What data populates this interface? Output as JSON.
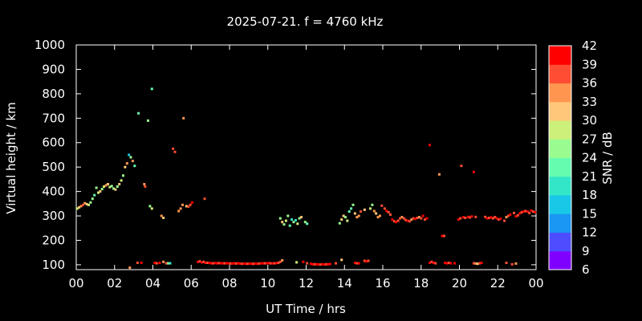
{
  "chart_data": {
    "type": "scatter",
    "title": "2025-07-21. f = 4760 kHz",
    "xlabel": "UT Time / hrs",
    "ylabel": "Virtual height / km",
    "xlim": [
      0,
      24
    ],
    "ylim": [
      80,
      1000
    ],
    "x_ticks": [
      "00",
      "02",
      "04",
      "06",
      "08",
      "10",
      "12",
      "14",
      "16",
      "18",
      "20",
      "22",
      "00"
    ],
    "y_ticks": [
      100,
      200,
      300,
      400,
      500,
      600,
      700,
      800,
      900,
      1000
    ],
    "grid": false,
    "background": "#000000",
    "colorbar": {
      "label": "SNR / dB",
      "min": 6,
      "max": 42,
      "ticks": [
        6,
        9,
        12,
        15,
        18,
        21,
        24,
        27,
        30,
        33,
        36,
        39,
        42
      ],
      "colors": [
        "#8000ff",
        "#4d4dff",
        "#1a96f3",
        "#19c7e6",
        "#33e6c7",
        "#66fcb0",
        "#99fc90",
        "#ccf07a",
        "#ffc77a",
        "#ff9650",
        "#ff4d33",
        "#ff0000"
      ]
    },
    "points": [
      [
        0.05,
        330,
        27
      ],
      [
        0.15,
        335,
        30
      ],
      [
        0.25,
        340,
        33
      ],
      [
        0.35,
        345,
        36
      ],
      [
        0.45,
        352,
        33
      ],
      [
        0.55,
        348,
        30
      ],
      [
        0.65,
        345,
        27
      ],
      [
        0.75,
        355,
        24
      ],
      [
        0.85,
        370,
        24
      ],
      [
        0.95,
        385,
        21
      ],
      [
        1.05,
        415,
        24
      ],
      [
        1.15,
        395,
        27
      ],
      [
        1.25,
        400,
        30
      ],
      [
        1.35,
        410,
        24
      ],
      [
        1.45,
        420,
        27
      ],
      [
        1.55,
        425,
        33
      ],
      [
        1.65,
        430,
        30
      ],
      [
        1.75,
        418,
        27
      ],
      [
        1.85,
        422,
        24
      ],
      [
        1.95,
        412,
        24
      ],
      [
        2.05,
        408,
        30
      ],
      [
        2.15,
        420,
        24
      ],
      [
        2.25,
        430,
        30
      ],
      [
        2.35,
        445,
        27
      ],
      [
        2.45,
        465,
        24
      ],
      [
        2.55,
        500,
        30
      ],
      [
        2.65,
        515,
        33
      ],
      [
        2.75,
        550,
        15
      ],
      [
        2.85,
        540,
        24
      ],
      [
        2.95,
        525,
        33
      ],
      [
        3.05,
        505,
        21
      ],
      [
        3.25,
        720,
        21
      ],
      [
        3.55,
        430,
        33
      ],
      [
        3.6,
        420,
        36
      ],
      [
        3.75,
        690,
        24
      ],
      [
        3.85,
        340,
        24
      ],
      [
        3.95,
        330,
        27
      ],
      [
        3.95,
        820,
        21
      ],
      [
        4.45,
        300,
        33
      ],
      [
        4.55,
        292,
        30
      ],
      [
        5.05,
        575,
        36
      ],
      [
        5.15,
        562,
        36
      ],
      [
        5.35,
        320,
        33
      ],
      [
        5.45,
        330,
        33
      ],
      [
        5.55,
        345,
        33
      ],
      [
        5.6,
        700,
        33
      ],
      [
        5.75,
        340,
        30
      ],
      [
        5.85,
        338,
        36
      ],
      [
        5.95,
        345,
        36
      ],
      [
        6.05,
        355,
        39
      ],
      [
        6.7,
        370,
        36
      ],
      [
        10.65,
        290,
        24
      ],
      [
        10.75,
        275,
        30
      ],
      [
        10.85,
        265,
        24
      ],
      [
        10.95,
        280,
        27
      ],
      [
        11.05,
        300,
        24
      ],
      [
        11.15,
        260,
        21
      ],
      [
        11.25,
        285,
        18
      ],
      [
        11.35,
        275,
        24
      ],
      [
        11.45,
        282,
        18
      ],
      [
        11.55,
        268,
        27
      ],
      [
        11.65,
        290,
        24
      ],
      [
        11.75,
        295,
        30
      ],
      [
        11.95,
        275,
        24
      ],
      [
        12.05,
        268,
        21
      ],
      [
        13.75,
        270,
        24
      ],
      [
        13.85,
        285,
        30
      ],
      [
        13.95,
        300,
        30
      ],
      [
        14.05,
        295,
        24
      ],
      [
        14.15,
        280,
        27
      ],
      [
        14.25,
        318,
        21
      ],
      [
        14.35,
        330,
        21
      ],
      [
        14.45,
        345,
        24
      ],
      [
        14.55,
        310,
        30
      ],
      [
        14.65,
        295,
        33
      ],
      [
        14.75,
        300,
        33
      ],
      [
        14.85,
        318,
        36
      ],
      [
        15.05,
        325,
        30
      ],
      [
        15.35,
        330,
        27
      ],
      [
        15.45,
        345,
        24
      ],
      [
        15.55,
        320,
        33
      ],
      [
        15.65,
        310,
        30
      ],
      [
        15.75,
        295,
        33
      ],
      [
        15.85,
        300,
        33
      ],
      [
        15.95,
        342,
        36
      ],
      [
        16.1,
        330,
        36
      ],
      [
        16.2,
        320,
        39
      ],
      [
        16.3,
        315,
        36
      ],
      [
        16.4,
        305,
        36
      ],
      [
        16.5,
        285,
        39
      ],
      [
        16.6,
        278,
        36
      ],
      [
        16.7,
        275,
        39
      ],
      [
        16.8,
        280,
        36
      ],
      [
        16.9,
        290,
        36
      ],
      [
        17.0,
        295,
        33
      ],
      [
        17.1,
        290,
        36
      ],
      [
        17.2,
        283,
        36
      ],
      [
        17.3,
        280,
        39
      ],
      [
        17.4,
        278,
        36
      ],
      [
        17.5,
        285,
        33
      ],
      [
        17.6,
        290,
        36
      ],
      [
        17.7,
        288,
        39
      ],
      [
        17.8,
        292,
        36
      ],
      [
        17.9,
        295,
        33
      ],
      [
        18.0,
        290,
        36
      ],
      [
        18.1,
        300,
        39
      ],
      [
        18.2,
        285,
        36
      ],
      [
        18.3,
        290,
        39
      ],
      [
        18.45,
        590,
        39
      ],
      [
        18.95,
        470,
        33
      ],
      [
        19.1,
        218,
        39
      ],
      [
        19.2,
        218,
        36
      ],
      [
        19.95,
        285,
        39
      ],
      [
        20.1,
        505,
        36
      ],
      [
        20.05,
        290,
        36
      ],
      [
        20.2,
        295,
        39
      ],
      [
        20.3,
        292,
        36
      ],
      [
        20.45,
        296,
        39
      ],
      [
        20.55,
        294,
        36
      ],
      [
        20.65,
        298,
        39
      ],
      [
        20.75,
        480,
        39
      ],
      [
        20.85,
        296,
        36
      ],
      [
        21.35,
        296,
        36
      ],
      [
        21.45,
        290,
        39
      ],
      [
        21.55,
        292,
        36
      ],
      [
        21.65,
        294,
        39
      ],
      [
        21.75,
        290,
        36
      ],
      [
        21.85,
        295,
        36
      ],
      [
        21.95,
        290,
        39
      ],
      [
        22.05,
        285,
        36
      ],
      [
        22.15,
        288,
        39
      ],
      [
        22.35,
        280,
        36
      ],
      [
        22.45,
        295,
        33
      ],
      [
        22.55,
        300,
        36
      ],
      [
        22.65,
        305,
        39
      ],
      [
        22.85,
        312,
        36
      ],
      [
        22.95,
        298,
        39
      ],
      [
        23.05,
        302,
        36
      ],
      [
        23.15,
        310,
        39
      ],
      [
        23.25,
        315,
        36
      ],
      [
        23.35,
        318,
        39
      ],
      [
        23.45,
        320,
        36
      ],
      [
        23.55,
        318,
        39
      ],
      [
        23.65,
        312,
        36
      ],
      [
        23.75,
        322,
        39
      ],
      [
        23.85,
        318,
        36
      ],
      [
        23.95,
        315,
        39
      ],
      [
        2.8,
        88,
        33
      ],
      [
        3.2,
        108,
        36
      ],
      [
        3.4,
        108,
        39
      ],
      [
        4.1,
        108,
        39
      ],
      [
        4.2,
        106,
        36
      ],
      [
        4.35,
        108,
        39
      ],
      [
        4.55,
        112,
        33
      ],
      [
        4.7,
        106,
        36
      ],
      [
        4.8,
        106,
        24
      ],
      [
        4.9,
        106,
        18
      ],
      [
        6.35,
        112,
        39
      ],
      [
        6.45,
        114,
        36
      ],
      [
        6.55,
        110,
        39
      ],
      [
        6.65,
        112,
        36
      ],
      [
        6.75,
        108,
        39
      ],
      [
        6.85,
        108,
        36
      ],
      [
        6.95,
        108,
        39
      ],
      [
        7.05,
        106,
        39
      ],
      [
        7.15,
        106,
        36
      ],
      [
        7.25,
        107,
        39
      ],
      [
        7.35,
        106,
        39
      ],
      [
        7.45,
        107,
        36
      ],
      [
        7.55,
        106,
        39
      ],
      [
        7.65,
        106,
        39
      ],
      [
        7.75,
        106,
        36
      ],
      [
        7.85,
        106,
        39
      ],
      [
        7.95,
        106,
        39
      ],
      [
        8.05,
        105,
        36
      ],
      [
        8.15,
        105,
        39
      ],
      [
        8.25,
        106,
        39
      ],
      [
        8.35,
        105,
        36
      ],
      [
        8.45,
        106,
        39
      ],
      [
        8.55,
        105,
        39
      ],
      [
        8.65,
        104,
        36
      ],
      [
        8.75,
        105,
        39
      ],
      [
        8.85,
        104,
        39
      ],
      [
        8.95,
        104,
        36
      ],
      [
        9.05,
        105,
        39
      ],
      [
        9.15,
        104,
        39
      ],
      [
        9.25,
        104,
        36
      ],
      [
        9.35,
        105,
        39
      ],
      [
        9.45,
        104,
        39
      ],
      [
        9.55,
        105,
        36
      ],
      [
        9.65,
        106,
        39
      ],
      [
        9.75,
        106,
        39
      ],
      [
        9.85,
        106,
        36
      ],
      [
        9.95,
        106,
        39
      ],
      [
        10.05,
        107,
        39
      ],
      [
        10.15,
        106,
        36
      ],
      [
        10.25,
        106,
        39
      ],
      [
        10.35,
        106,
        36
      ],
      [
        10.45,
        107,
        39
      ],
      [
        10.55,
        108,
        36
      ],
      [
        10.65,
        112,
        36
      ],
      [
        10.75,
        118,
        33
      ],
      [
        11.5,
        110,
        27
      ],
      [
        11.85,
        112,
        39
      ],
      [
        12.05,
        106,
        36
      ],
      [
        12.25,
        104,
        39
      ],
      [
        12.35,
        102,
        39
      ],
      [
        12.45,
        102,
        36
      ],
      [
        12.55,
        102,
        39
      ],
      [
        12.65,
        101,
        39
      ],
      [
        12.75,
        101,
        36
      ],
      [
        12.85,
        102,
        39
      ],
      [
        12.95,
        101,
        39
      ],
      [
        13.05,
        102,
        36
      ],
      [
        13.15,
        102,
        39
      ],
      [
        13.25,
        103,
        39
      ],
      [
        13.55,
        106,
        36
      ],
      [
        13.85,
        120,
        30
      ],
      [
        14.55,
        108,
        39
      ],
      [
        14.65,
        106,
        36
      ],
      [
        14.75,
        106,
        39
      ],
      [
        15.05,
        116,
        36
      ],
      [
        15.15,
        114,
        39
      ],
      [
        15.25,
        116,
        36
      ],
      [
        18.45,
        108,
        39
      ],
      [
        18.55,
        112,
        36
      ],
      [
        18.65,
        108,
        39
      ],
      [
        18.75,
        106,
        36
      ],
      [
        19.25,
        108,
        39
      ],
      [
        19.35,
        106,
        39
      ],
      [
        19.45,
        108,
        36
      ],
      [
        19.55,
        106,
        39
      ],
      [
        19.75,
        106,
        39
      ],
      [
        20.75,
        106,
        36
      ],
      [
        20.85,
        105,
        33
      ],
      [
        20.95,
        104,
        30
      ],
      [
        21.05,
        106,
        36
      ],
      [
        21.15,
        108,
        39
      ],
      [
        22.45,
        108,
        36
      ],
      [
        22.75,
        102,
        36
      ],
      [
        22.95,
        105,
        33
      ]
    ]
  }
}
